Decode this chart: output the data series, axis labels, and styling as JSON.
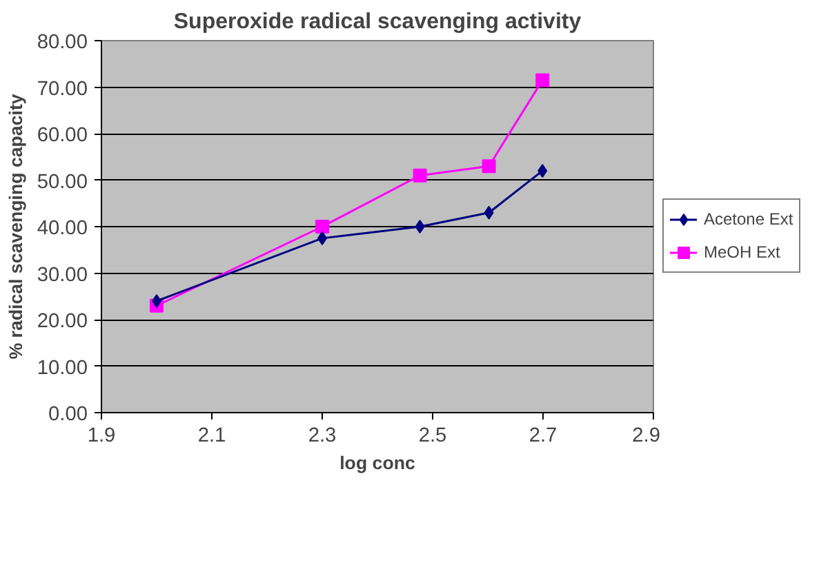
{
  "chart_data": {
    "type": "line",
    "title": "Superoxide radical scavenging activity",
    "xlabel": "log conc",
    "ylabel": "% radical scavenging capacity",
    "x": [
      2.0,
      2.3,
      2.477,
      2.602,
      2.699
    ],
    "series": [
      {
        "name": "Acetone Ext",
        "color": "#000080",
        "marker": "diamond",
        "values": [
          24,
          37.5,
          40,
          43,
          52
        ]
      },
      {
        "name": "MeOH Ext",
        "color": "#ff00ff",
        "marker": "square",
        "values": [
          23,
          40,
          51,
          53,
          71.5
        ]
      }
    ],
    "xlim": [
      1.9,
      2.9
    ],
    "xticks": [
      1.9,
      2.1,
      2.3,
      2.5,
      2.7,
      2.9
    ],
    "ylim": [
      0,
      80
    ],
    "yticks": [
      {
        "value": 0,
        "label": "0.00"
      },
      {
        "value": 10,
        "label": "10.00"
      },
      {
        "value": 20,
        "label": "20.00"
      },
      {
        "value": 30,
        "label": "30.00"
      },
      {
        "value": 40,
        "label": "40.00"
      },
      {
        "value": 50,
        "label": "50.00"
      },
      {
        "value": 60,
        "label": "60.00"
      },
      {
        "value": 70,
        "label": "70.00"
      },
      {
        "value": 80,
        "label": "80.00"
      }
    ],
    "grid": "y",
    "legend": "right"
  }
}
